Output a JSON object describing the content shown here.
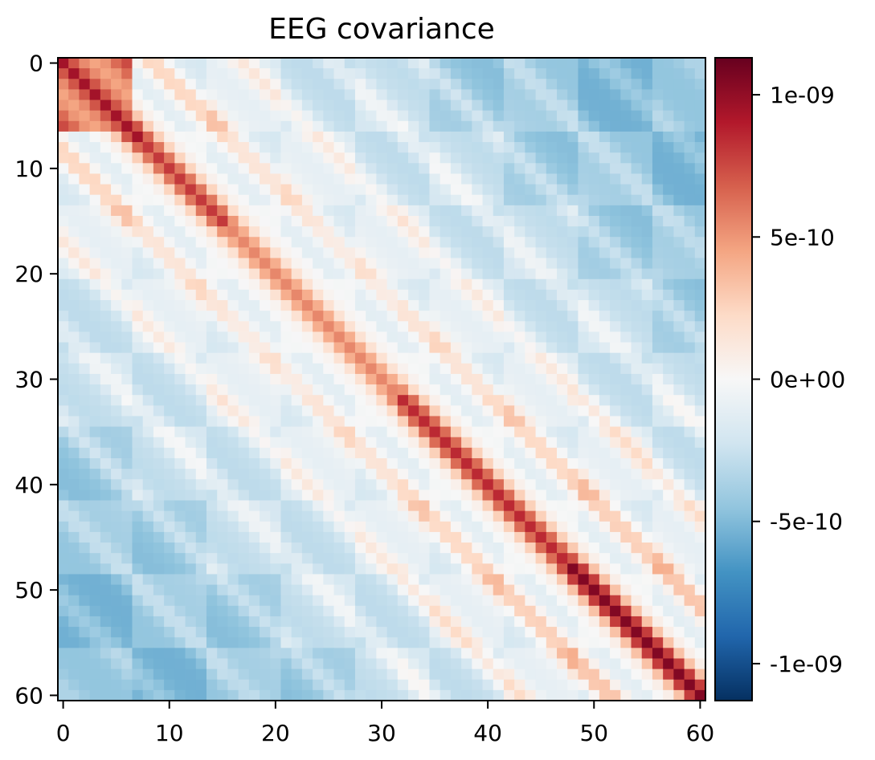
{
  "chart_data": {
    "type": "heatmap",
    "title": "EEG covariance",
    "xlabel": "",
    "ylabel": "",
    "n_channels": 61,
    "x_range": [
      -0.5,
      60.5
    ],
    "y_range": [
      -0.5,
      60.5
    ],
    "y_axis_inverted": true,
    "x_ticks": [
      0,
      10,
      20,
      30,
      40,
      50,
      60
    ],
    "x_tick_labels": [
      "0",
      "10",
      "20",
      "30",
      "40",
      "50",
      "60"
    ],
    "y_ticks": [
      0,
      10,
      20,
      30,
      40,
      50,
      60
    ],
    "y_tick_labels": [
      "0",
      "10",
      "20",
      "30",
      "40",
      "50",
      "60"
    ],
    "colormap": "RdBu_r",
    "colorbar": {
      "vmin": -1.13e-09,
      "vmax": 1.13e-09,
      "ticks": [
        1e-09,
        5e-10,
        0,
        -5e-10,
        -1e-09
      ],
      "tick_labels": [
        "1e-09",
        "5e-10",
        "0e+00",
        "-5e-10",
        "-1e-09"
      ]
    },
    "structure": {
      "description": "symmetric covariance with strong positive main diagonal, parallel positive off-diagonals spaced ~8-9 channels apart, and negative covariance between distant channels",
      "diagonal_peak_by_region": [
        {
          "channels": [
            0,
            7
          ],
          "value": 9.5e-10
        },
        {
          "channels": [
            8,
            15
          ],
          "value": 8e-10
        },
        {
          "channels": [
            16,
            31
          ],
          "value": 5.5e-10
        },
        {
          "channels": [
            32,
            39
          ],
          "value": 8.5e-10
        },
        {
          "channels": [
            40,
            47
          ],
          "value": 8.5e-10
        },
        {
          "channels": [
            48,
            60
          ],
          "value": 1.05e-09
        }
      ],
      "off_diagonal_spacing": 8.5,
      "off_diagonal_value": 5e-10,
      "distant_value": -4.5e-10,
      "grid_grouping": 7,
      "grid_group_value": -1e-10,
      "corner_block": {
        "channels": [
          0,
          6
        ],
        "value": 7.5e-10
      }
    },
    "colors": {
      "dark_red": "#67001f",
      "red": "#b2182b",
      "light_red": "#f4a582",
      "white": "#f7f7f7",
      "light_blue": "#92c5de",
      "blue": "#2166ac",
      "dark_blue": "#053061"
    },
    "grid": false
  }
}
